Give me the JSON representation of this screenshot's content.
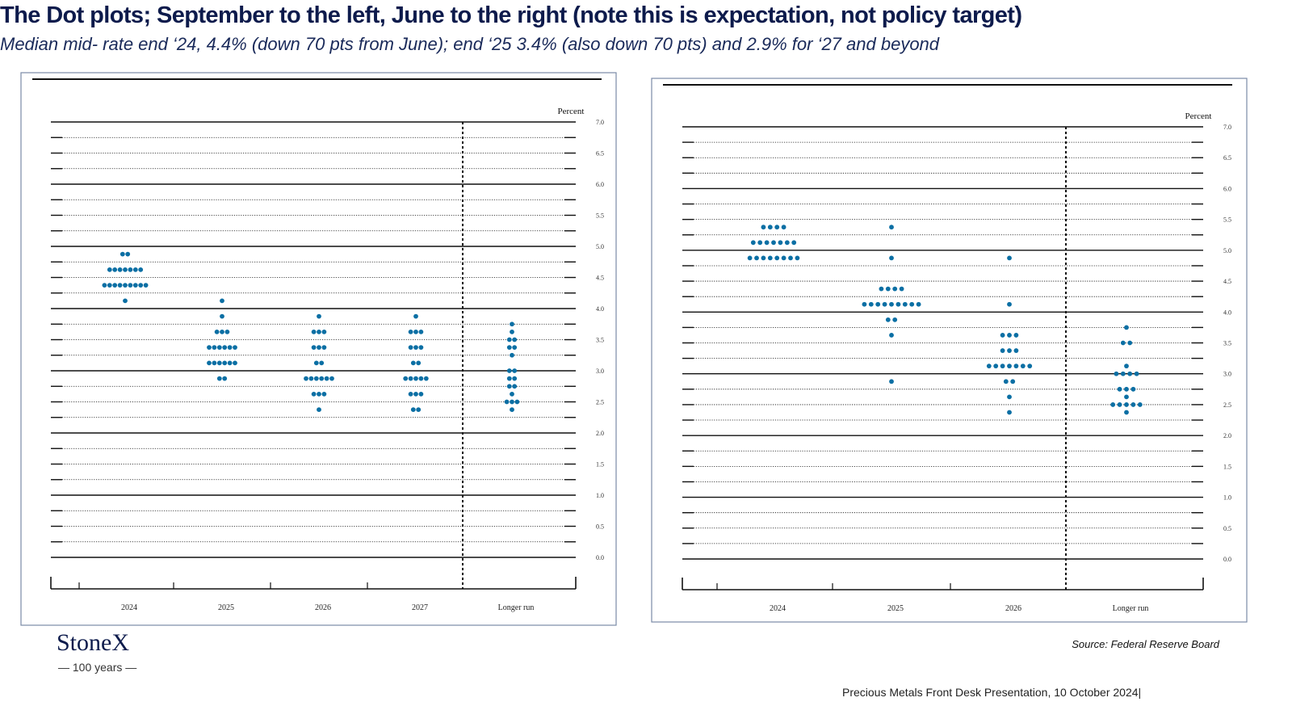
{
  "title": "The Dot plots; September to the left, June to the right (note this is expectation, not policy target)",
  "subtitle": "Median mid- rate end ‘24, 4.4% (down 70 pts from June); end ‘25 3.4% (also down 70 pts) and 2.9% for ‘27 and beyond",
  "logo": "StoneX",
  "logo_tagline": "— 100 years —",
  "source": "Source: Federal Reserve Board",
  "footer": "Precious Metals Front Desk Presentation, 10 October 2024|",
  "chart_data": [
    {
      "type": "dot",
      "y_label": "Percent",
      "color": "#0b6fa4",
      "categories": [
        "2024",
        "2025",
        "2026",
        "2027",
        "Longer run"
      ],
      "ylim": [
        0,
        7
      ],
      "yticks": [
        {
          "value": 0,
          "label": "0.0"
        },
        {
          "value": 0.5,
          "label": "0.5"
        },
        {
          "value": 1,
          "label": "1.0"
        },
        {
          "value": 1.5,
          "label": "1.5"
        },
        {
          "value": 2,
          "label": "2.0"
        },
        {
          "value": 2.5,
          "label": "2.5"
        },
        {
          "value": 3,
          "label": "3.0"
        },
        {
          "value": 3.5,
          "label": "3.5"
        },
        {
          "value": 4,
          "label": "4.0"
        },
        {
          "value": 4.5,
          "label": "4.5"
        },
        {
          "value": 5,
          "label": "5.0"
        },
        {
          "value": 5.5,
          "label": "5.5"
        },
        {
          "value": 6,
          "label": "6.0"
        },
        {
          "value": 6.5,
          "label": "6.5"
        },
        {
          "value": 7,
          "label": "7.0"
        }
      ],
      "dots": [
        [
          4.875,
          4.875,
          4.625,
          4.625,
          4.625,
          4.625,
          4.625,
          4.625,
          4.625,
          4.375,
          4.375,
          4.375,
          4.375,
          4.375,
          4.375,
          4.375,
          4.375,
          4.375,
          4.125
        ],
        [
          4.125,
          3.875,
          3.625,
          3.625,
          3.625,
          3.375,
          3.375,
          3.375,
          3.375,
          3.375,
          3.375,
          3.125,
          3.125,
          3.125,
          3.125,
          3.125,
          3.125,
          2.875,
          2.875
        ],
        [
          3.875,
          3.625,
          3.625,
          3.625,
          3.375,
          3.375,
          3.375,
          3.125,
          3.125,
          2.875,
          2.875,
          2.875,
          2.875,
          2.875,
          2.875,
          2.625,
          2.625,
          2.625,
          2.375
        ],
        [
          3.875,
          3.625,
          3.625,
          3.625,
          3.375,
          3.375,
          3.375,
          3.125,
          3.125,
          2.875,
          2.875,
          2.875,
          2.875,
          2.875,
          2.625,
          2.625,
          2.625,
          2.375,
          2.375
        ],
        [
          3.75,
          3.625,
          3.5,
          3.5,
          3.375,
          3.375,
          3.25,
          3,
          3,
          2.875,
          2.875,
          2.75,
          2.75,
          2.625,
          2.5,
          2.5,
          2.5,
          2.375
        ]
      ]
    },
    {
      "type": "dot",
      "y_label": "Percent",
      "color": "#0b6fa4",
      "categories": [
        "2024",
        "2025",
        "2026",
        "Longer run"
      ],
      "ylim": [
        0,
        7
      ],
      "yticks": [
        {
          "value": 0,
          "label": "0.0"
        },
        {
          "value": 0.5,
          "label": "0.5"
        },
        {
          "value": 1,
          "label": "1.0"
        },
        {
          "value": 1.5,
          "label": "1.5"
        },
        {
          "value": 2,
          "label": "2.0"
        },
        {
          "value": 2.5,
          "label": "2.5"
        },
        {
          "value": 3,
          "label": "3.0"
        },
        {
          "value": 3.5,
          "label": "3.5"
        },
        {
          "value": 4,
          "label": "4.0"
        },
        {
          "value": 4.5,
          "label": "4.5"
        },
        {
          "value": 5,
          "label": "5.0"
        },
        {
          "value": 5.5,
          "label": "5.5"
        },
        {
          "value": 6,
          "label": "6.0"
        },
        {
          "value": 6.5,
          "label": "6.5"
        },
        {
          "value": 7,
          "label": "7.0"
        }
      ],
      "dots": [
        [
          5.375,
          5.375,
          5.375,
          5.375,
          5.125,
          5.125,
          5.125,
          5.125,
          5.125,
          5.125,
          5.125,
          4.875,
          4.875,
          4.875,
          4.875,
          4.875,
          4.875,
          4.875,
          4.875
        ],
        [
          5.375,
          4.875,
          4.375,
          4.375,
          4.375,
          4.375,
          4.125,
          4.125,
          4.125,
          4.125,
          4.125,
          4.125,
          4.125,
          4.125,
          4.125,
          3.875,
          3.875,
          3.625,
          2.875
        ],
        [
          4.875,
          4.125,
          3.625,
          3.625,
          3.625,
          3.375,
          3.375,
          3.375,
          3.125,
          3.125,
          3.125,
          3.125,
          3.125,
          3.125,
          3.125,
          2.875,
          2.875,
          2.625,
          2.375
        ],
        [
          3.75,
          3.5,
          3.5,
          3.125,
          3,
          3,
          3,
          3,
          2.75,
          2.75,
          2.75,
          2.625,
          2.5,
          2.5,
          2.5,
          2.5,
          2.5,
          2.375
        ]
      ]
    }
  ]
}
